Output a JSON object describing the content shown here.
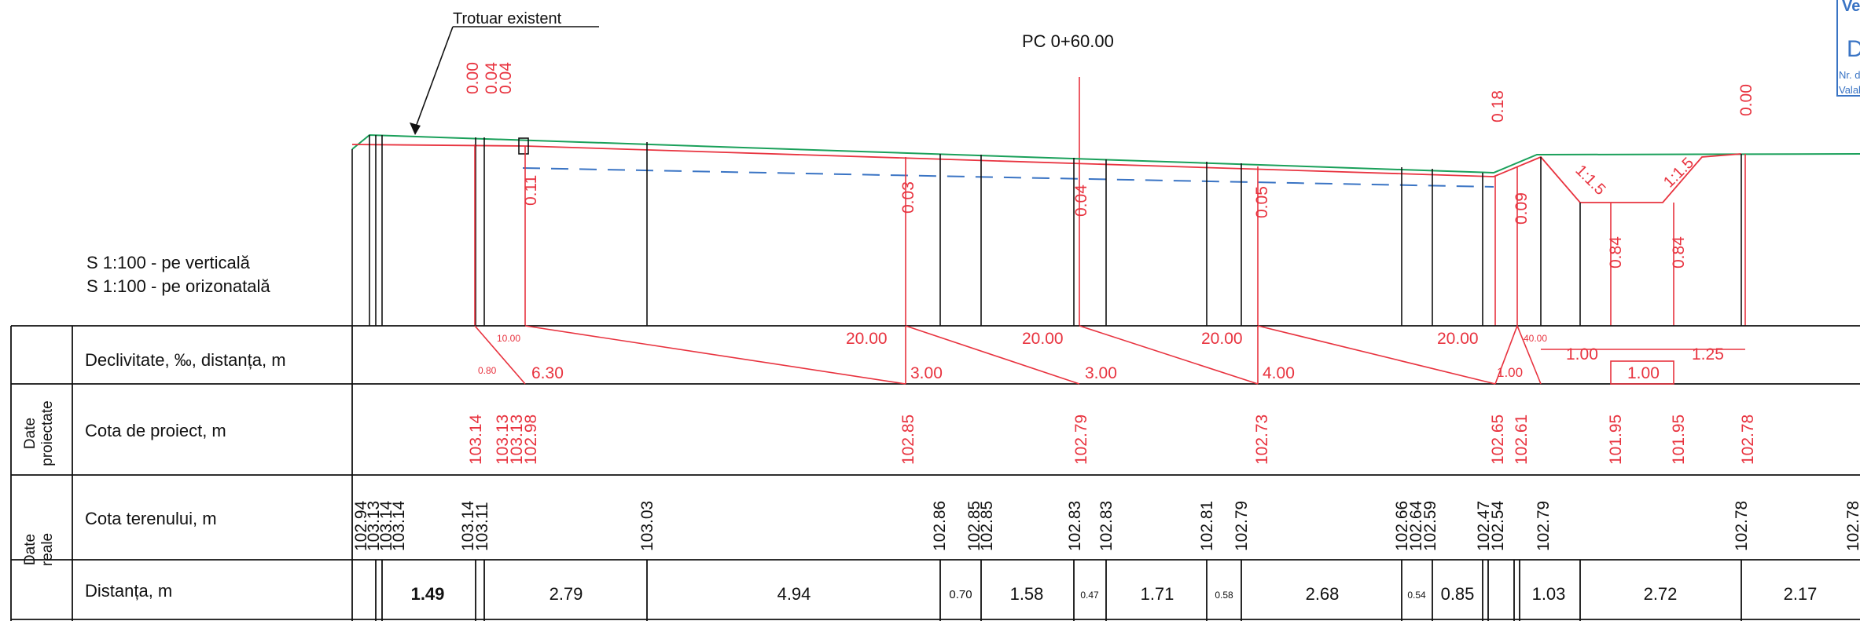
{
  "header": {
    "existing_sidewalk_label": "Trotuar existent",
    "station_label": "PC 0+60.00"
  },
  "scale": {
    "vertical": "S 1:100 - pe verticală",
    "horizontal": "S 1:100 - pe orizonatală"
  },
  "groups": {
    "designed": "Date proiectate",
    "actual": "Date reale"
  },
  "rows": {
    "slope": "Declivitate, ‰, distanța, m",
    "design_elevation": "Cota de proiect, m",
    "ground_elevation": "Cota terenului, m",
    "distance": "Distanța, m"
  },
  "stamp": {
    "line1": "Ve",
    "line2": "D",
    "line3": "Nr. de",
    "line4": "Valab"
  },
  "top_red_values": [
    "0.00",
    "0.04",
    "0.04",
    "0.18",
    "0.00"
  ],
  "profile_red_values": [
    "0.11",
    "0.03",
    "0.04",
    "0.05",
    "0.09",
    "0.84",
    "0.84"
  ],
  "slope_marks": [
    "1:1.5",
    "1:1.5"
  ],
  "slope_row": {
    "big_slopes": [
      "20.00",
      "20.00",
      "20.00",
      "20.00"
    ],
    "big_distances": [
      "3.00",
      "3.00",
      "4.00"
    ],
    "first_distance": "6.30",
    "small_top": [
      "10.00",
      "40.00"
    ],
    "small_bottom": [
      "0.80",
      "1.00"
    ],
    "ditch_values": [
      "1.00",
      "1.00",
      "1.25"
    ]
  },
  "design_elevations": [
    "103.14",
    "103.13",
    "103.13",
    "102.98",
    "102.85",
    "102.79",
    "102.73",
    "102.65",
    "102.61",
    "101.95",
    "101.95",
    "102.78"
  ],
  "ground_elevations": [
    "102.94",
    "103.13",
    "103.14",
    "103.14",
    "103.14",
    "103.11",
    "103.03",
    "102.86",
    "102.85",
    "102.85",
    "102.83",
    "102.83",
    "102.81",
    "102.79",
    "102.66",
    "102.64",
    "102.59",
    "102.47",
    "102.54",
    "102.79",
    "102.78",
    "102.78"
  ],
  "distances_large": [
    "1.49",
    "2.79",
    "4.94",
    "1.58",
    "1.71",
    "2.68",
    "0.85",
    "1.03",
    "2.72",
    "2.17"
  ],
  "distances_small": [
    "0.70",
    "0.47",
    "0.58",
    "0.54"
  ]
}
